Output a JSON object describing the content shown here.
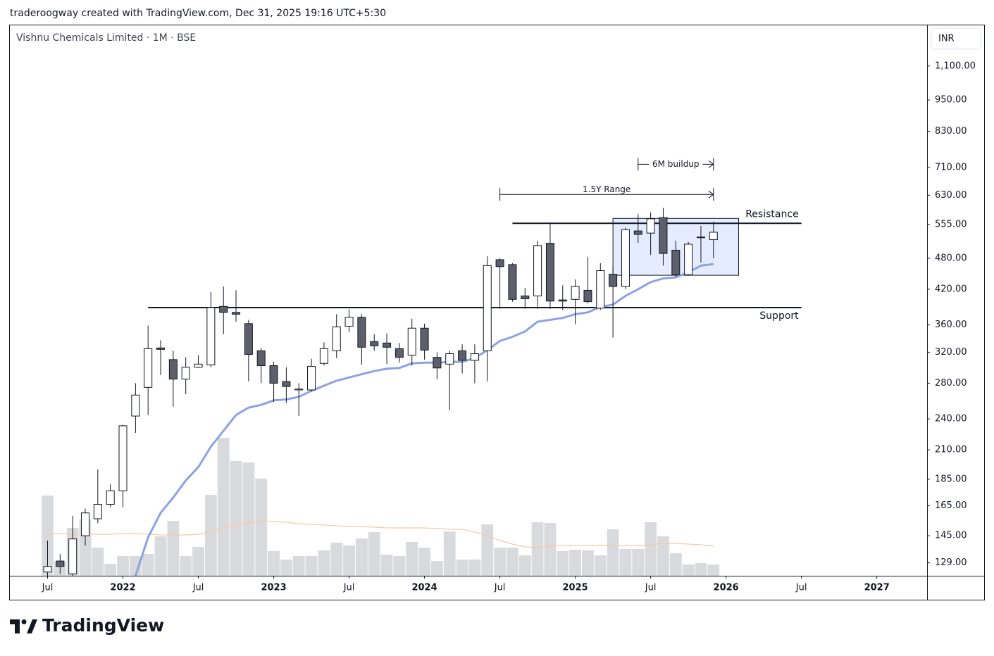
{
  "header": {
    "text": "traderoogway created with TradingView.com, Dec 31, 2025 19:16 UTC+5:30"
  },
  "footer": {
    "logo": "TradingView"
  },
  "chart_data": {
    "type": "candlestick",
    "title": "Vishnu Chemicals Limited · 1M · BSE",
    "currency": "INR",
    "x": [
      "2021-07",
      "2021-08",
      "2021-09",
      "2021-10",
      "2021-11",
      "2021-12",
      "2022-01",
      "2022-02",
      "2022-03",
      "2022-04",
      "2022-05",
      "2022-06",
      "2022-07",
      "2022-08",
      "2022-09",
      "2022-10",
      "2022-11",
      "2022-12",
      "2023-01",
      "2023-02",
      "2023-03",
      "2023-04",
      "2023-05",
      "2023-06",
      "2023-07",
      "2023-08",
      "2023-09",
      "2023-10",
      "2023-11",
      "2023-12",
      "2024-01",
      "2024-02",
      "2024-03",
      "2024-04",
      "2024-05",
      "2024-06",
      "2024-07",
      "2024-08",
      "2024-09",
      "2024-10",
      "2024-11",
      "2024-12",
      "2025-01",
      "2025-02",
      "2025-03",
      "2025-04",
      "2025-05",
      "2025-06",
      "2025-07",
      "2025-08",
      "2025-09",
      "2025-10",
      "2025-11",
      "2025-12"
    ],
    "open": [
      124,
      130,
      123,
      145,
      156,
      166,
      176,
      243,
      275,
      326,
      310,
      285,
      300,
      303,
      390,
      380,
      362,
      322,
      302,
      282,
      272,
      272,
      305,
      322,
      358,
      372,
      335,
      333,
      325,
      316,
      355,
      313,
      304,
      322,
      309,
      322,
      477,
      467,
      408,
      408,
      512,
      401,
      402,
      418,
      387,
      448,
      425,
      540,
      535,
      572,
      497,
      447,
      525,
      520
    ],
    "high": [
      142,
      134,
      158,
      163,
      193,
      181,
      234,
      280,
      359,
      337,
      322,
      313,
      316,
      415,
      425,
      418,
      368,
      326,
      307,
      300,
      280,
      311,
      334,
      377,
      385,
      377,
      346,
      347,
      333,
      370,
      362,
      320,
      322,
      331,
      331,
      484,
      480,
      470,
      422,
      518,
      560,
      427,
      438,
      483,
      470,
      465,
      548,
      581,
      585,
      597,
      518,
      515,
      552,
      562
    ],
    "low": [
      120,
      123,
      122,
      139,
      153,
      164,
      164,
      226,
      244,
      290,
      253,
      267,
      299,
      300,
      346,
      365,
      282,
      280,
      258,
      257,
      243,
      270,
      302,
      312,
      349,
      303,
      322,
      304,
      306,
      302,
      310,
      285,
      249,
      292,
      280,
      282,
      386,
      398,
      386,
      386,
      386,
      384,
      361,
      395,
      384,
      341,
      420,
      513,
      487,
      465,
      443,
      445,
      471,
      480
    ],
    "close": [
      127,
      127,
      143,
      160,
      166,
      176,
      233,
      266,
      325,
      324,
      285,
      300,
      304,
      388,
      380,
      377,
      317,
      302,
      280,
      276,
      273,
      301,
      325,
      357,
      372,
      327,
      329,
      327,
      313,
      355,
      323,
      299,
      318,
      309,
      318,
      465,
      463,
      402,
      403,
      507,
      399,
      399,
      425,
      398,
      455,
      425,
      543,
      532,
      569,
      490,
      447,
      510,
      526,
      537
    ],
    "up_color": "#ffffff",
    "down_color": "#5d606b",
    "ma": {
      "color": "#8ba3e0",
      "values": [
        null,
        null,
        null,
        null,
        null,
        null,
        null,
        122,
        144,
        160,
        171,
        184,
        195,
        213,
        228,
        244,
        252,
        255,
        260,
        261,
        264,
        271,
        277,
        283,
        287,
        291,
        295,
        298,
        299,
        305,
        306,
        306,
        307,
        307,
        312,
        323,
        336,
        342,
        350,
        365,
        368,
        371,
        377,
        380,
        389,
        393,
        408,
        420,
        433,
        440,
        442,
        452,
        465,
        468
      ]
    },
    "volume": {
      "color": "#d9dadd",
      "values": [
        114,
        20,
        68,
        80,
        40,
        17,
        28,
        28,
        31,
        56,
        78,
        28,
        41,
        115,
        196,
        163,
        161,
        138,
        35,
        23,
        28,
        28,
        36,
        47,
        43,
        53,
        62,
        30,
        28,
        48,
        40,
        21,
        63,
        23,
        23,
        73,
        40,
        40,
        29,
        76,
        75,
        35,
        37,
        36,
        29,
        66,
        38,
        38,
        76,
        56,
        32,
        16,
        18,
        16
      ]
    },
    "volume_ma": {
      "color": "#f6c9a8",
      "values": [
        60,
        60,
        59,
        59,
        59,
        59,
        60,
        60,
        59,
        58,
        58,
        58,
        59,
        63,
        68,
        72,
        75,
        78,
        77,
        76,
        74,
        73,
        72,
        71,
        70,
        70,
        69,
        68,
        68,
        68,
        68,
        67,
        66,
        66,
        62,
        57,
        50,
        45,
        41,
        40,
        42,
        43,
        43,
        43,
        43,
        43,
        43,
        43,
        44,
        46,
        46,
        45,
        44,
        42
      ]
    },
    "volume_lim": [
      0,
      200
    ],
    "log_scale": true,
    "ylim": [
      122,
      1315
    ],
    "yticks": [
      {
        "value": 1100,
        "label": "1,100.00"
      },
      {
        "value": 950,
        "label": "950.00"
      },
      {
        "value": 830,
        "label": "830.00"
      },
      {
        "value": 710,
        "label": "710.00"
      },
      {
        "value": 630,
        "label": "630.00"
      },
      {
        "value": 555,
        "label": "555.00"
      },
      {
        "value": 480,
        "label": "480.00"
      },
      {
        "value": 420,
        "label": "420.00"
      },
      {
        "value": 360,
        "label": "360.00"
      },
      {
        "value": 320,
        "label": "320.00"
      },
      {
        "value": 280,
        "label": "280.00"
      },
      {
        "value": 240,
        "label": "240.00"
      },
      {
        "value": 210,
        "label": "210.00"
      },
      {
        "value": 185,
        "label": "185.00"
      },
      {
        "value": 165,
        "label": "165.00"
      },
      {
        "value": 145,
        "label": "145.00"
      },
      {
        "value": 129,
        "label": "129.00"
      }
    ],
    "xlim": [
      "2021-04",
      "2027-05"
    ],
    "xticks": [
      {
        "value": "2021-07",
        "label": "Jul"
      },
      {
        "value": "2022-01",
        "label": "2022"
      },
      {
        "value": "2022-07",
        "label": "Jul"
      },
      {
        "value": "2023-01",
        "label": "2023"
      },
      {
        "value": "2023-07",
        "label": "Jul"
      },
      {
        "value": "2024-01",
        "label": "2024"
      },
      {
        "value": "2024-07",
        "label": "Jul"
      },
      {
        "value": "2025-01",
        "label": "2025"
      },
      {
        "value": "2025-07",
        "label": "Jul"
      },
      {
        "value": "2026-01",
        "label": "2026"
      },
      {
        "value": "2026-07",
        "label": "Jul"
      },
      {
        "value": "2027-01",
        "label": "2027"
      }
    ],
    "annotations": {
      "support": {
        "label": "Support",
        "value": 388,
        "from": "2022-03",
        "to": "2026-07"
      },
      "resistance": {
        "label": "Resistance",
        "value": 558,
        "from": "2024-08",
        "to": "2026-07"
      },
      "box": {
        "low": 446,
        "high": 570,
        "from": "2025-04",
        "to": "2026-02"
      },
      "range": {
        "label": "1.5Y Range",
        "value": 632,
        "from": "2024-07",
        "to": "2025-12"
      },
      "buildup": {
        "label": "6M buildup",
        "value": 720,
        "from": "2025-06",
        "to": "2025-12"
      }
    }
  }
}
